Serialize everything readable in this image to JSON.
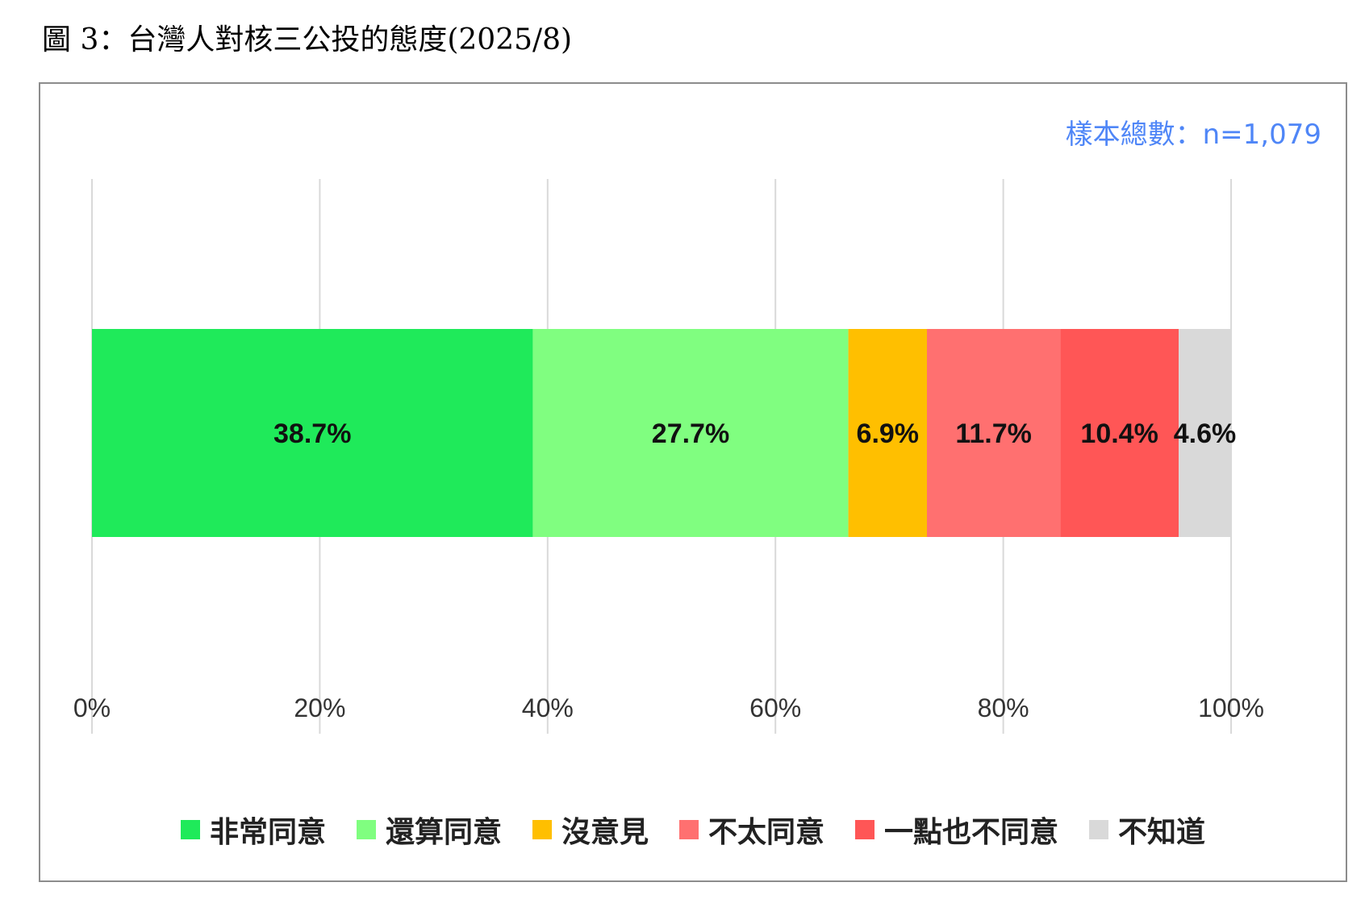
{
  "figure_title": "圖 3：台灣人對核三公投的態度(2025/8)",
  "sample_label": "樣本總數：n=1,079",
  "colors": {
    "sample_text": "#4f86f7",
    "grid": "#d9d9d9",
    "frame": "#8c8c8c"
  },
  "chart_data": {
    "type": "bar",
    "orientation": "horizontal",
    "stacked": true,
    "grid": true,
    "legend_position": "bottom",
    "xlim": [
      0,
      100
    ],
    "x_ticks": [
      "0%",
      "20%",
      "40%",
      "60%",
      "80%",
      "100%"
    ],
    "categories": [
      ""
    ],
    "series": [
      {
        "name": "非常同意",
        "values": [
          38.7
        ],
        "label": "38.7%",
        "color": "#1fea5a"
      },
      {
        "name": "還算同意",
        "values": [
          27.7
        ],
        "label": "27.7%",
        "color": "#80fe80"
      },
      {
        "name": "沒意見",
        "values": [
          6.9
        ],
        "label": "6.9%",
        "color": "#ffbf00"
      },
      {
        "name": "不太同意",
        "values": [
          11.7
        ],
        "label": "11.7%",
        "color": "#ff7070"
      },
      {
        "name": "一點也不同意",
        "values": [
          10.4
        ],
        "label": "10.4%",
        "color": "#ff5656"
      },
      {
        "name": "不知道",
        "values": [
          4.6
        ],
        "label": "4.6%",
        "color": "#d9d9d9"
      }
    ]
  }
}
